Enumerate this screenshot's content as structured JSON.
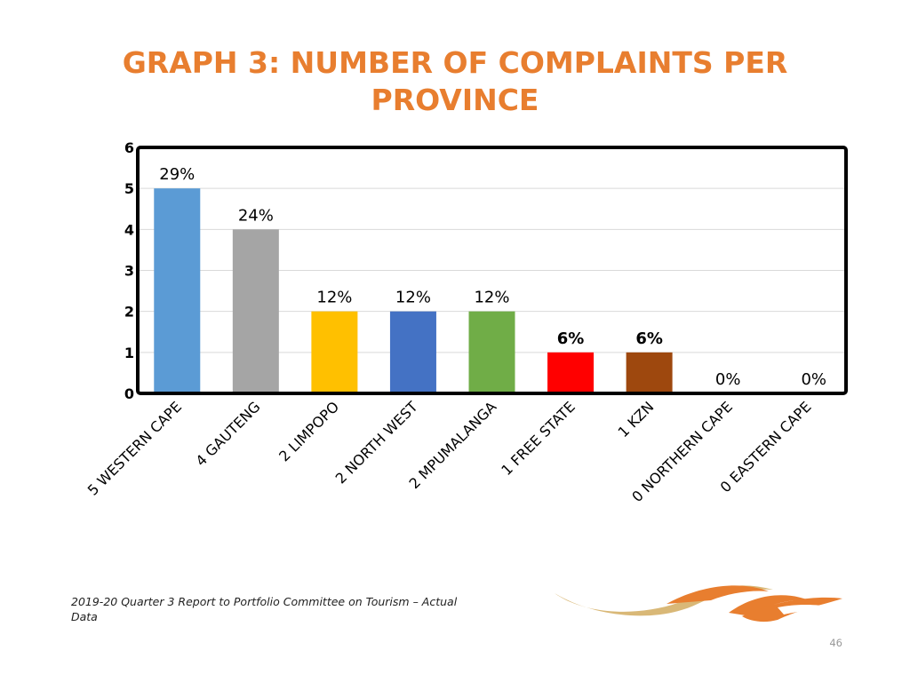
{
  "slide": {
    "title": "GRAPH 3: NUMBER OF COMPLAINTS PER PROVINCE",
    "footer": "2019-20 Quarter 3 Report to Portfolio Committee on Tourism  – Actual Data",
    "page_number": "46"
  },
  "chart_data": {
    "type": "bar",
    "title": "GRAPH 3: NUMBER OF COMPLAINTS PER PROVINCE",
    "xlabel": "",
    "ylabel": "",
    "ylim": [
      0,
      6
    ],
    "yticks": [
      0,
      1,
      2,
      3,
      4,
      5,
      6
    ],
    "grid": true,
    "legend": "none",
    "categories": [
      "5 WESTERN CAPE",
      "4 GAUTENG",
      "2 LIMPOPO",
      "2 NORTH WEST",
      "2 MPUMALANGA",
      "1 FREE STATE",
      "1 KZN",
      "0 NORTHERN CAPE",
      "0 EASTERN CAPE"
    ],
    "values": [
      5,
      4,
      2,
      2,
      2,
      1,
      1,
      0,
      0
    ],
    "data_labels": [
      "29%",
      "24%",
      "12%",
      "12%",
      "12%",
      "6%",
      "6%",
      "0%",
      "0%"
    ],
    "bold_labels": [
      false,
      false,
      false,
      false,
      false,
      true,
      true,
      false,
      false
    ],
    "colors": [
      "#5b9bd5",
      "#a5a5a5",
      "#ffc000",
      "#4472c4",
      "#70ad47",
      "#ff0000",
      "#9e480e",
      "#264478",
      "#636363"
    ]
  }
}
